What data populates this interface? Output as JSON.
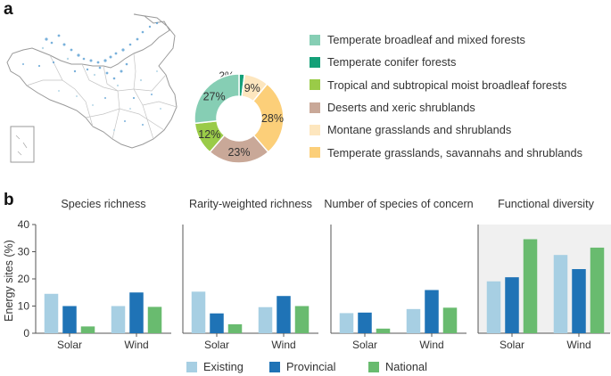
{
  "panel_a": {
    "letter": "a",
    "legend": [
      {
        "label": "Temperate broadleaf and mixed forests",
        "color": "#86ceb4"
      },
      {
        "label": "Temperate conifer forests",
        "color": "#14a078"
      },
      {
        "label": "Tropical and subtropical moist broadleaf forests",
        "color": "#9acb48"
      },
      {
        "label": "Deserts and xeric shrublands",
        "color": "#c9a898"
      },
      {
        "label": "Montane grasslands and shrublands",
        "color": "#fde6be"
      },
      {
        "label": "Temperate grasslands, savannahs and shrublands",
        "color": "#fccf79"
      }
    ]
  },
  "panel_b": {
    "letter": "b",
    "legend": [
      {
        "label": "Existing",
        "color": "#a7cfe3"
      },
      {
        "label": "Provincial",
        "color": "#1f73b6"
      },
      {
        "label": "National",
        "color": "#69bb6f"
      }
    ]
  },
  "chart_data": [
    {
      "type": "pie",
      "donut": true,
      "slices": [
        {
          "category": "Temperate conifer forests",
          "value": 2,
          "label": "2%",
          "color": "#14a078"
        },
        {
          "category": "Montane grasslands and shrublands",
          "value": 9,
          "label": "9%",
          "color": "#fde6be"
        },
        {
          "category": "Temperate grasslands, savannahs and shrublands",
          "value": 28,
          "label": "28%",
          "color": "#fccf79"
        },
        {
          "category": "Deserts and xeric shrublands",
          "value": 23,
          "label": "23%",
          "color": "#c9a898"
        },
        {
          "category": "Tropical and subtropical moist broadleaf forests",
          "value": 12,
          "label": "12%",
          "color": "#9acb48"
        },
        {
          "category": "Temperate broadleaf and mixed forests",
          "value": 27,
          "label": "27%",
          "color": "#86ceb4"
        }
      ]
    },
    {
      "type": "bar",
      "title": "Species richness",
      "categories": [
        "Solar",
        "Wind"
      ],
      "series": [
        {
          "name": "Existing",
          "values": [
            14.5,
            10
          ]
        },
        {
          "name": "Provincial",
          "values": [
            10,
            15
          ]
        },
        {
          "name": "National",
          "values": [
            2.5,
            9.7
          ]
        }
      ],
      "ylabel": "Energy sites (%)",
      "ylim": [
        0,
        40
      ],
      "yticks": [
        "0",
        "10",
        "20",
        "30",
        "40"
      ]
    },
    {
      "type": "bar",
      "title": "Rarity-weighted richness",
      "categories": [
        "Solar",
        "Wind"
      ],
      "series": [
        {
          "name": "Existing",
          "values": [
            15.3,
            9.6
          ]
        },
        {
          "name": "Provincial",
          "values": [
            7.3,
            13.7
          ]
        },
        {
          "name": "National",
          "values": [
            3.3,
            10
          ]
        }
      ],
      "ylim": [
        0,
        40
      ]
    },
    {
      "type": "bar",
      "title": "Number of species of concern",
      "categories": [
        "Solar",
        "Wind"
      ],
      "series": [
        {
          "name": "Existing",
          "values": [
            7.4,
            8.9
          ]
        },
        {
          "name": "Provincial",
          "values": [
            7.6,
            15.9
          ]
        },
        {
          "name": "National",
          "values": [
            1.7,
            9.4
          ]
        }
      ],
      "ylim": [
        0,
        40
      ]
    },
    {
      "type": "bar",
      "title": "Functional diversity",
      "categories": [
        "Solar",
        "Wind"
      ],
      "series": [
        {
          "name": "Existing",
          "values": [
            19.1,
            28.8
          ]
        },
        {
          "name": "Provincial",
          "values": [
            20.6,
            23.6
          ]
        },
        {
          "name": "National",
          "values": [
            34.6,
            31.5
          ]
        }
      ],
      "ylim": [
        0,
        40
      ]
    }
  ]
}
